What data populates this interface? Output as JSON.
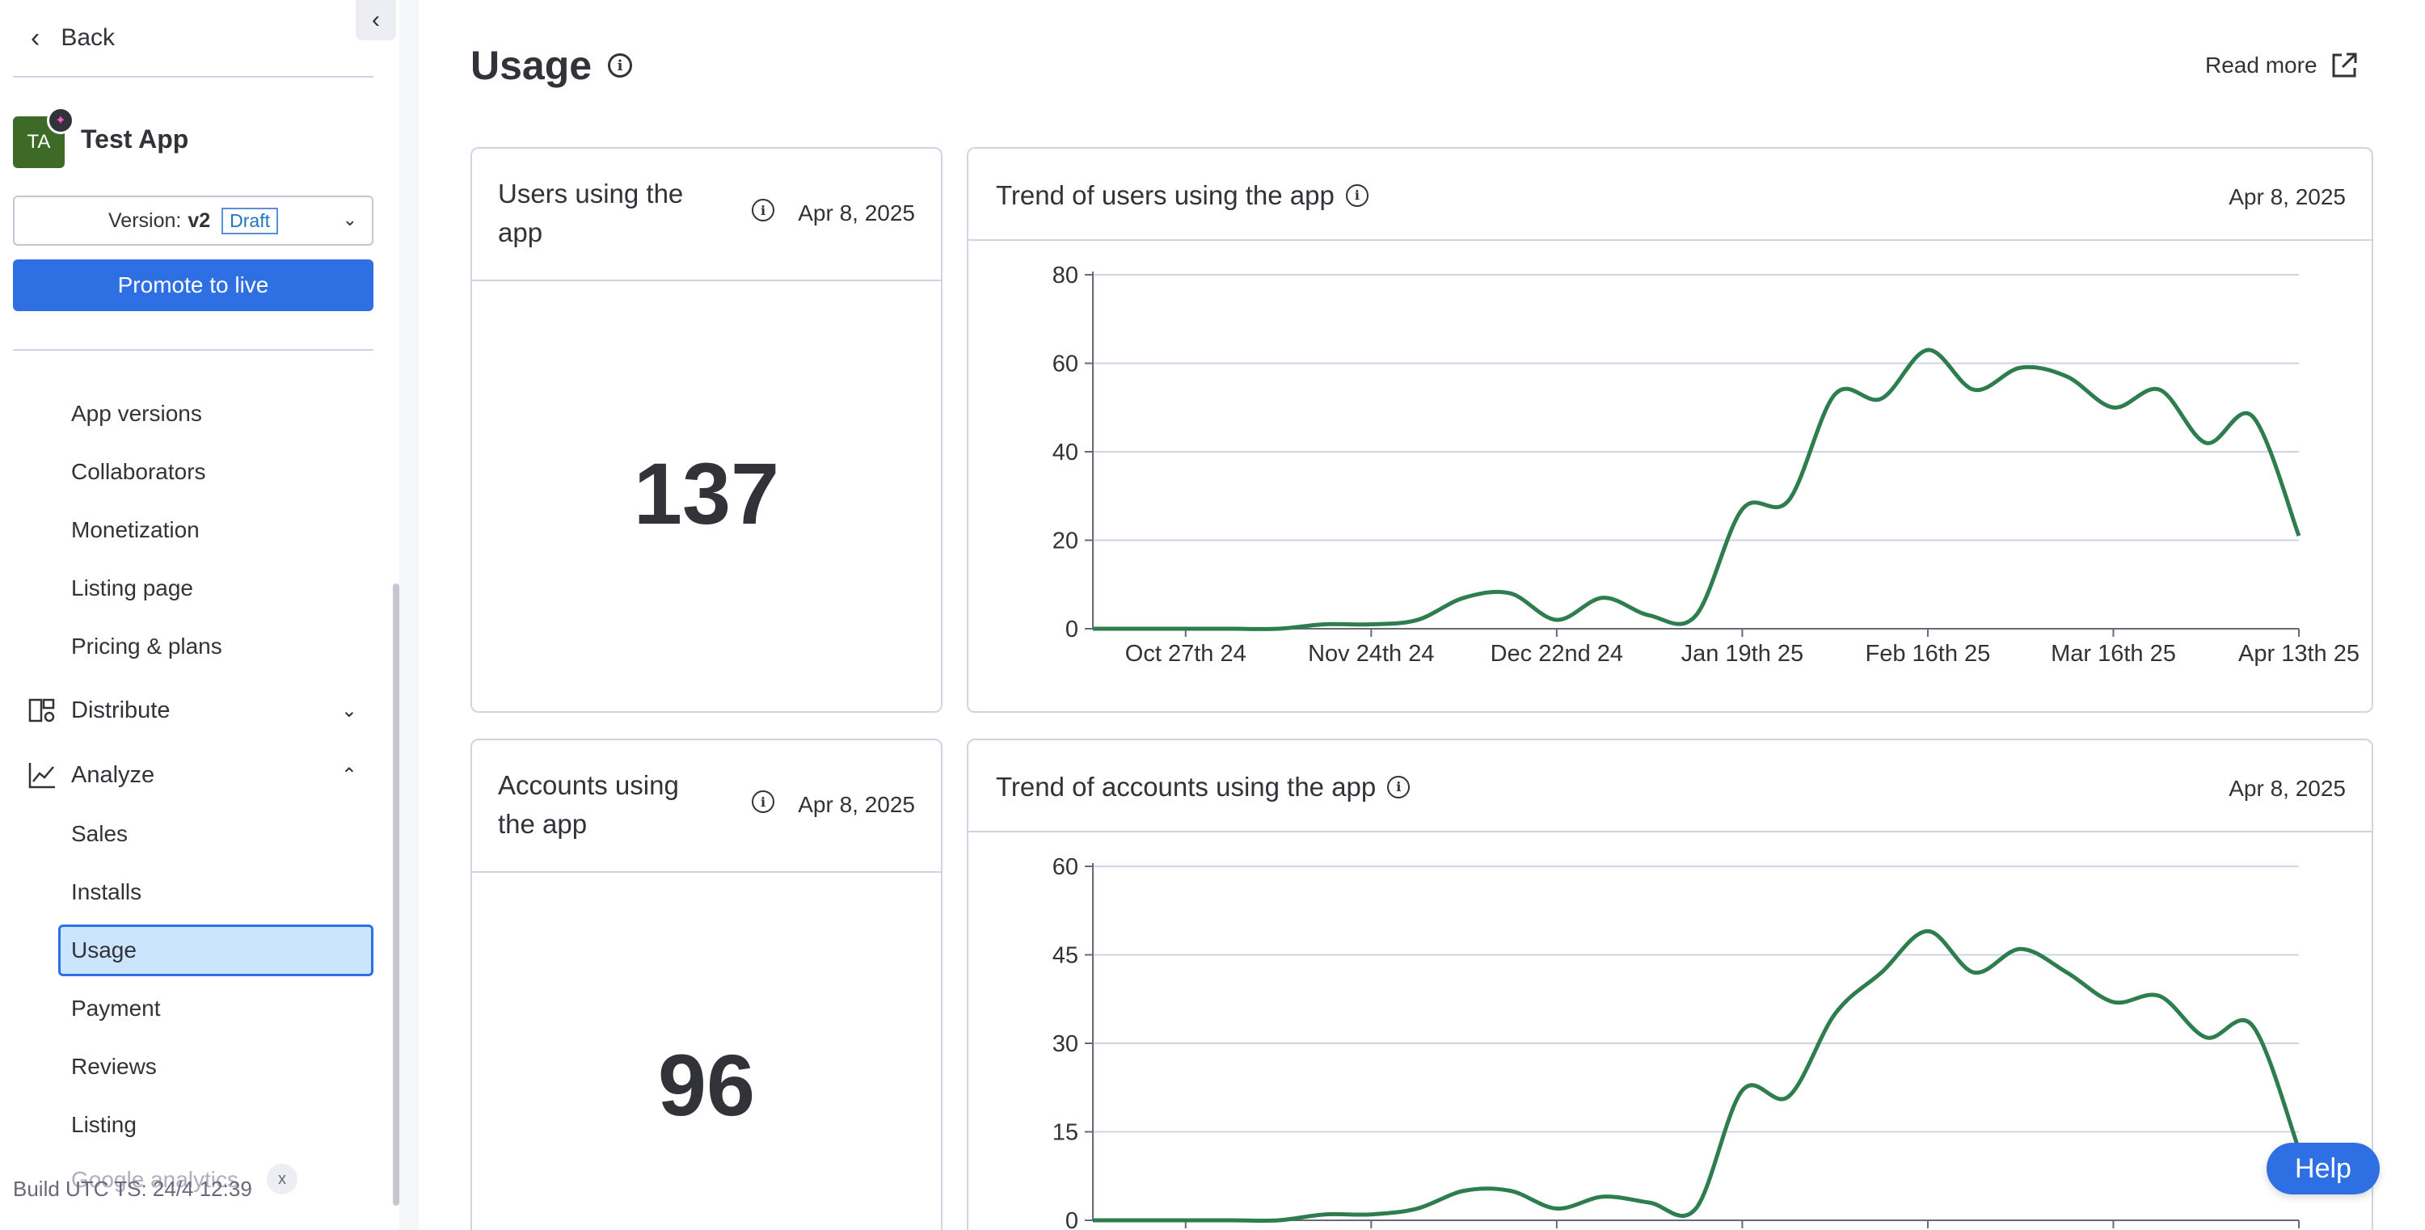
{
  "sidebar": {
    "back_label": "Back",
    "app": {
      "initials": "TA",
      "name": "Test App"
    },
    "version": {
      "label": "Version:",
      "value": "v2",
      "status": "Draft"
    },
    "promote_label": "Promote to live",
    "manage_items": [
      "App versions",
      "Collaborators",
      "Monetization",
      "Listing page",
      "Pricing & plans"
    ],
    "distribute": {
      "label": "Distribute",
      "icon": "distribute-icon",
      "expanded": false
    },
    "analyze": {
      "label": "Analyze",
      "icon": "chart-line-icon",
      "expanded": true
    },
    "analyze_items": [
      "Sales",
      "Installs",
      "Usage",
      "Payment",
      "Reviews",
      "Listing"
    ],
    "active_item": "Usage",
    "google_analytics_label": "Google analytics",
    "build_info": "Build UTC TS: 24/4 12:39"
  },
  "main": {
    "title": "Usage",
    "read_more_label": "Read more",
    "users_card": {
      "title_line1": "Users using the",
      "title_line2": "app",
      "date": "Apr 8, 2025",
      "value": "137"
    },
    "users_trend": {
      "title": "Trend of users using the app",
      "date": "Apr 8, 2025"
    },
    "accounts_card": {
      "title_line1": "Accounts using",
      "title_line2": "the app",
      "date": "Apr 8, 2025",
      "value": "96"
    },
    "accounts_trend": {
      "title": "Trend of accounts using the app",
      "date": "Apr 8, 2025"
    },
    "help_label": "Help"
  },
  "colors": {
    "accent": "#2f6fe4",
    "line": "#2e7d4f",
    "app_avatar": "#3d6b27"
  },
  "chart_data": [
    {
      "type": "line",
      "title": "Trend of users using the app",
      "xlabel": "",
      "ylabel": "",
      "x_ticks": [
        "Oct 27th 24",
        "Nov 24th 24",
        "Dec 22nd 24",
        "Jan 19th 25",
        "Feb 16th 25",
        "Mar 16th 25",
        "Apr 13th 25"
      ],
      "y_ticks": [
        0,
        20,
        40,
        60,
        80
      ],
      "ylim": [
        0,
        80
      ],
      "xlim": [
        0,
        26
      ],
      "grid": true,
      "series": [
        {
          "x": [
            0,
            1,
            2,
            3,
            4,
            5,
            6,
            7,
            8,
            9,
            10,
            11,
            12,
            13,
            14,
            15,
            16,
            17,
            18,
            19,
            20,
            21,
            22,
            23,
            24,
            25,
            26
          ],
          "values": [
            0,
            0,
            0,
            0,
            0,
            1,
            1,
            2,
            7,
            8,
            2,
            7,
            3,
            3,
            27,
            29,
            53,
            52,
            63,
            54,
            59,
            57,
            50,
            54,
            42,
            48,
            21
          ]
        }
      ]
    },
    {
      "type": "line",
      "title": "Trend of accounts using the app",
      "xlabel": "",
      "ylabel": "",
      "y_ticks": [
        0,
        15,
        30,
        45,
        60
      ],
      "ylim": [
        0,
        60
      ],
      "xlim": [
        0,
        26
      ],
      "grid": true,
      "series": [
        {
          "x": [
            0,
            1,
            2,
            3,
            4,
            5,
            6,
            7,
            8,
            9,
            10,
            11,
            12,
            13,
            14,
            15,
            16,
            17,
            18,
            19,
            20,
            21,
            22,
            23,
            24,
            25,
            26
          ],
          "values": [
            0,
            0,
            0,
            0,
            0,
            1,
            1,
            2,
            5,
            5,
            2,
            4,
            3,
            2,
            22,
            21,
            35,
            42,
            49,
            42,
            46,
            42,
            37,
            38,
            31,
            33,
            12
          ]
        }
      ]
    }
  ]
}
